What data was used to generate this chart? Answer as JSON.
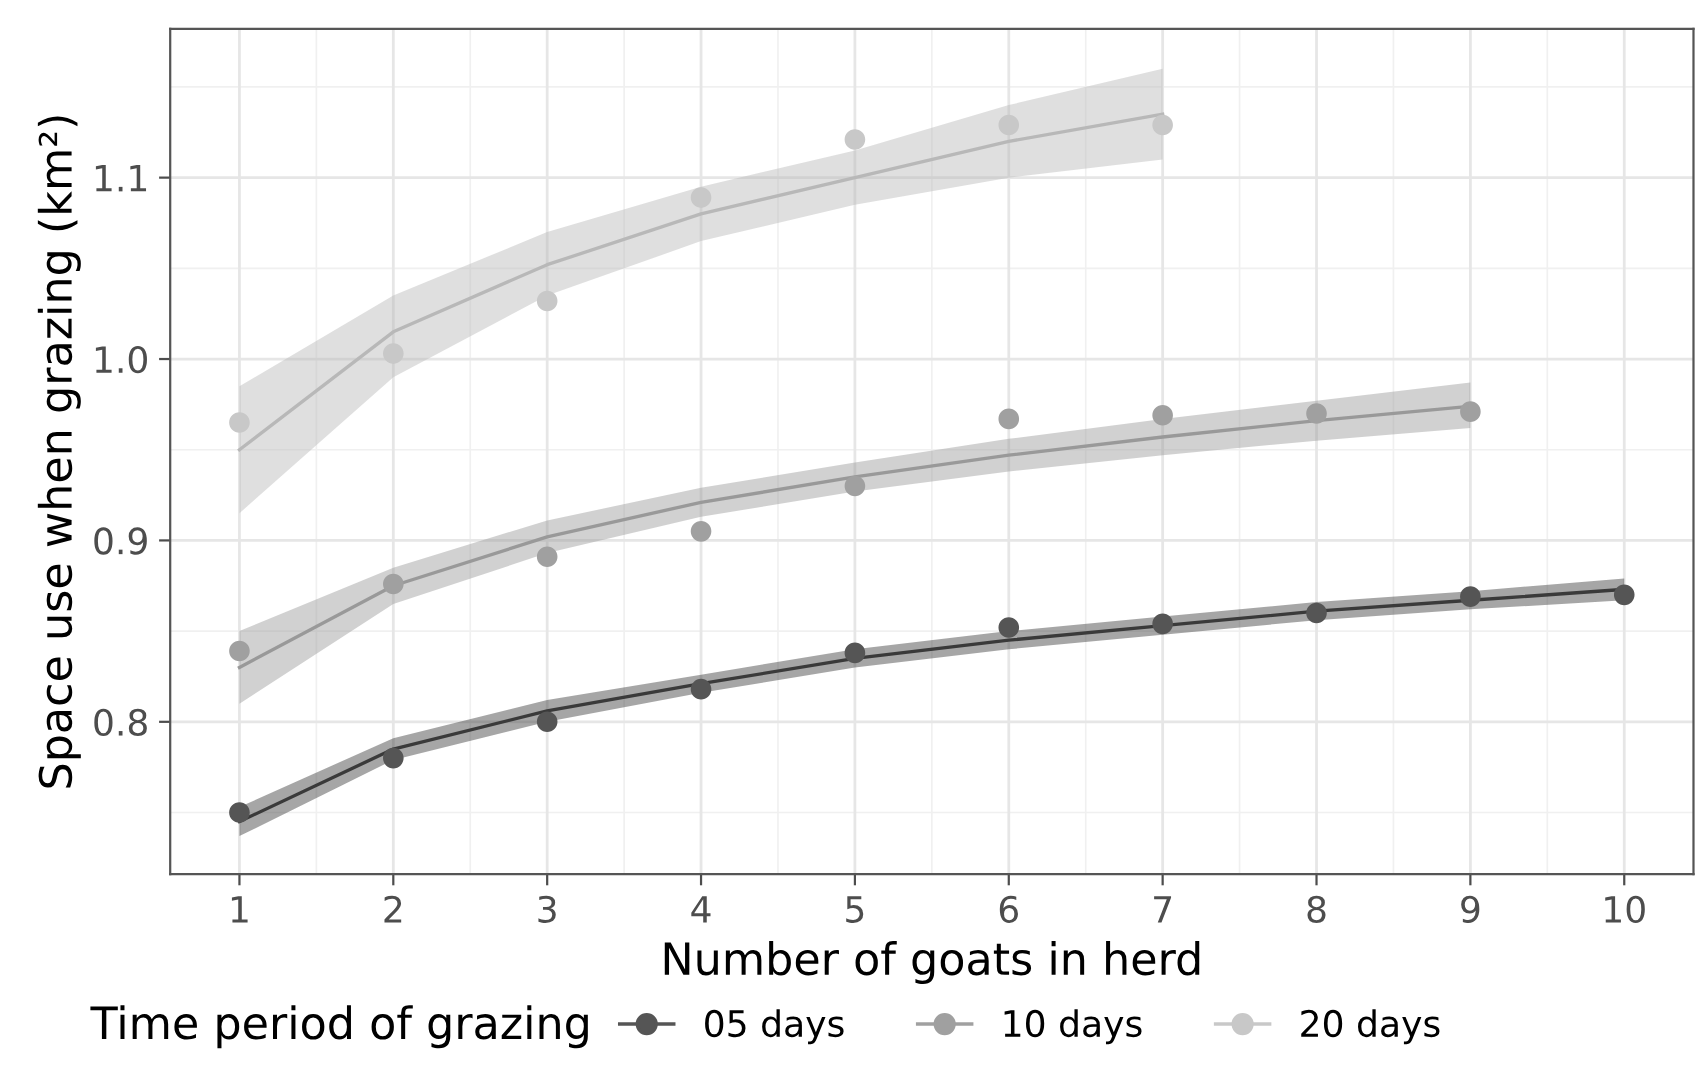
{
  "chart_data": {
    "type": "scatter",
    "xlabel": "Number of goats in herd",
    "ylabel": "Space use when grazing (km²)",
    "legend_title": "Time period of grazing",
    "legend": "bottom",
    "grid": true,
    "xlim": [
      0.55,
      10.45
    ],
    "xticks": [
      1,
      2,
      3,
      4,
      5,
      6,
      7,
      8,
      9,
      10
    ],
    "ylim": [
      0.716,
      1.182
    ],
    "yticks": [
      0.8,
      0.9,
      {
        "value": 1.0,
        "label": "1.0"
      },
      1.1
    ],
    "series": [
      {
        "type": "line",
        "color": "#b8b8b8",
        "x": [
          1,
          2,
          3,
          4,
          5,
          6,
          7
        ],
        "values": [
          0.95,
          1.015,
          1.052,
          1.08,
          1.1,
          1.12,
          1.135
        ],
        "lower": [
          0.915,
          0.99,
          1.035,
          1.065,
          1.085,
          1.1,
          1.11
        ],
        "upper": [
          0.985,
          1.035,
          1.07,
          1.095,
          1.115,
          1.14,
          1.16
        ]
      },
      {
        "type": "line",
        "color": "#999999",
        "x": [
          1,
          2,
          3,
          4,
          5,
          6,
          7,
          8,
          9
        ],
        "values": [
          0.83,
          0.875,
          0.902,
          0.921,
          0.935,
          0.947,
          0.957,
          0.966,
          0.974
        ],
        "lower": [
          0.81,
          0.865,
          0.893,
          0.913,
          0.927,
          0.938,
          0.947,
          0.955,
          0.962
        ],
        "upper": [
          0.85,
          0.885,
          0.911,
          0.929,
          0.943,
          0.956,
          0.967,
          0.977,
          0.987
        ]
      },
      {
        "type": "line",
        "color": "#3a3a3a",
        "x": [
          1,
          2,
          3,
          4,
          5,
          6,
          7,
          8,
          9,
          10
        ],
        "values": [
          0.745,
          0.785,
          0.806,
          0.821,
          0.835,
          0.845,
          0.853,
          0.861,
          0.867,
          0.873
        ],
        "lower": [
          0.737,
          0.779,
          0.8,
          0.816,
          0.83,
          0.84,
          0.848,
          0.856,
          0.862,
          0.867
        ],
        "upper": [
          0.753,
          0.791,
          0.812,
          0.826,
          0.84,
          0.85,
          0.858,
          0.866,
          0.872,
          0.879
        ]
      },
      {
        "marker": "circle",
        "name": "05 days",
        "color": "#555555",
        "x": [
          1,
          2,
          3,
          4,
          5,
          6,
          7,
          8,
          9,
          10
        ],
        "values": [
          0.75,
          0.78,
          0.8,
          0.818,
          0.838,
          0.852,
          0.854,
          0.86,
          0.869,
          0.87
        ]
      },
      {
        "marker": "circle",
        "name": "10 days",
        "color": "#a0a0a0",
        "x": [
          1,
          2,
          3,
          4,
          5,
          6,
          7,
          8,
          9
        ],
        "values": [
          0.839,
          0.876,
          0.891,
          0.905,
          0.93,
          0.967,
          0.969,
          0.97,
          0.971
        ]
      },
      {
        "marker": "circle",
        "name": "20 days",
        "color": "#c8c8c8",
        "x": [
          1,
          2,
          3,
          4,
          5,
          6,
          7
        ],
        "values": [
          0.965,
          1.003,
          1.032,
          1.089,
          1.121,
          1.129,
          1.129
        ]
      }
    ]
  }
}
